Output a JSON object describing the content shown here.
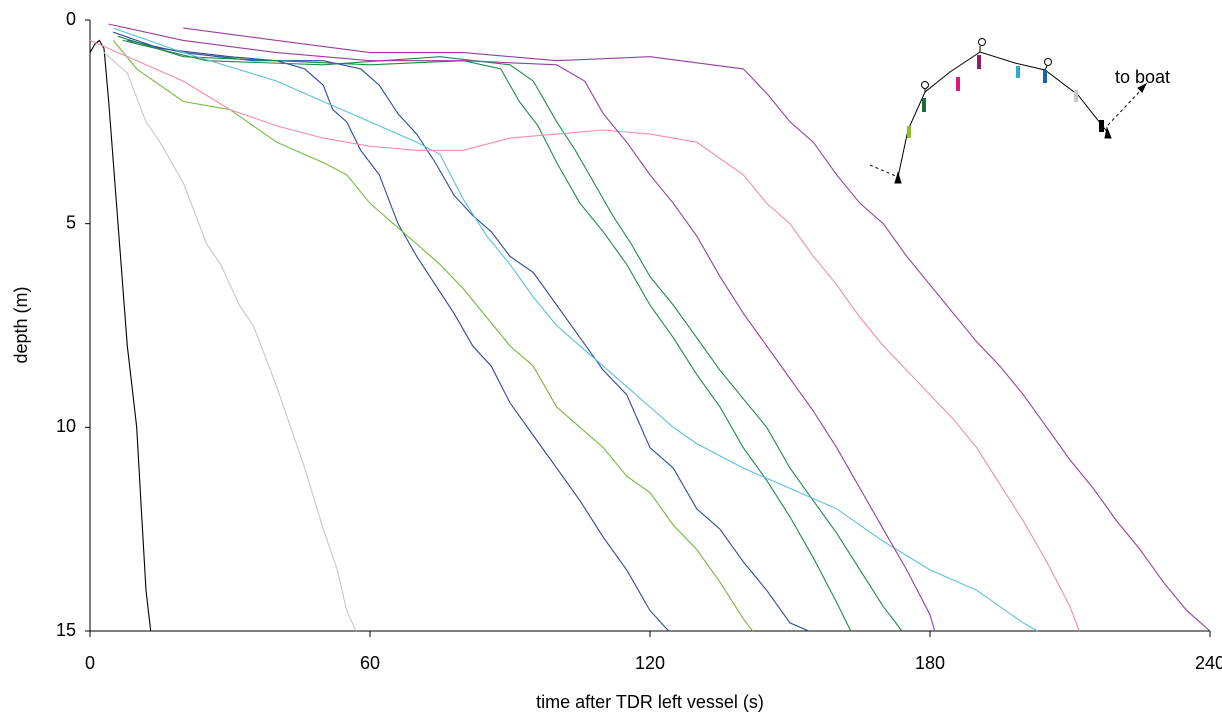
{
  "chart_data": {
    "type": "line",
    "x_label": "time after TDR left vessel (s)",
    "y_label": "depth (m)",
    "annotation": "to boat",
    "xlim": [
      0,
      240
    ],
    "xticks": [
      0,
      60,
      120,
      180,
      240
    ],
    "ylim": [
      0,
      15
    ],
    "yticks": [
      0,
      5,
      10,
      15
    ],
    "y_inverted": true,
    "grid": false,
    "series": [
      {
        "color": "#000000",
        "x": [
          0,
          1,
          2,
          3,
          4,
          6,
          8,
          10,
          11,
          12,
          13
        ],
        "values": [
          0.8,
          0.6,
          0.5,
          0.7,
          2,
          5,
          8,
          10,
          12,
          14,
          15
        ]
      },
      {
        "color": "#c8c8c8",
        "x": [
          3,
          8,
          12,
          15,
          20,
          25,
          28,
          32,
          35,
          40,
          43,
          46,
          50,
          53,
          55,
          57
        ],
        "values": [
          0.8,
          1.3,
          2.5,
          3,
          4,
          5.5,
          6,
          7,
          7.5,
          9,
          10,
          11,
          12.5,
          13.5,
          14.5,
          15
        ]
      },
      {
        "color": "#2b4a9b",
        "x": [
          5,
          15,
          30,
          40,
          46,
          50,
          52,
          55,
          58,
          62,
          66,
          70,
          74,
          78,
          82,
          86,
          90,
          95,
          100,
          105,
          110,
          115,
          120,
          124
        ],
        "values": [
          0.3,
          0.7,
          0.9,
          1,
          1.2,
          1.6,
          2.2,
          2.5,
          3.2,
          3.8,
          5,
          5.8,
          6.5,
          7.2,
          8,
          8.5,
          9.4,
          10.2,
          11,
          11.8,
          12.7,
          13.5,
          14.5,
          15
        ]
      },
      {
        "color": "#2b4a9b",
        "x": [
          8,
          20,
          35,
          50,
          58,
          62,
          66,
          70,
          74,
          78,
          82,
          86,
          90,
          95,
          100,
          105,
          110,
          115,
          120,
          125,
          130,
          135,
          140,
          145,
          150,
          154
        ],
        "values": [
          0.5,
          0.8,
          1,
          1,
          1.2,
          1.6,
          2.3,
          2.8,
          3.5,
          4.3,
          4.8,
          5.2,
          5.8,
          6.2,
          7,
          7.8,
          8.6,
          9.2,
          10.5,
          11,
          12,
          12.5,
          13.3,
          14,
          14.8,
          15
        ]
      },
      {
        "color": "#76b83a",
        "x": [
          5,
          10,
          20,
          30,
          35,
          40,
          50,
          55,
          60,
          65,
          70,
          75,
          80,
          85,
          90,
          95,
          100,
          105,
          110,
          115,
          120,
          125,
          130,
          135,
          140,
          142
        ],
        "values": [
          0.5,
          1.2,
          2,
          2.2,
          2.6,
          3,
          3.5,
          3.8,
          4.5,
          5,
          5.5,
          6,
          6.6,
          7.3,
          8,
          8.5,
          9.5,
          10,
          10.5,
          11.2,
          11.6,
          12.4,
          13,
          13.8,
          14.7,
          15
        ]
      },
      {
        "color": "#1e8a4a",
        "x": [
          6,
          20,
          40,
          60,
          80,
          88,
          92,
          96,
          100,
          105,
          110,
          115,
          120,
          125,
          130,
          135,
          140,
          145,
          150,
          155,
          160,
          163
        ],
        "values": [
          0.4,
          0.9,
          1,
          1.1,
          1,
          1.2,
          2,
          2.6,
          3.5,
          4.5,
          5.2,
          6,
          7,
          7.8,
          8.7,
          9.5,
          10.5,
          11.3,
          12.2,
          13.2,
          14.3,
          15
        ]
      },
      {
        "color": "#1e8a4a",
        "x": [
          7,
          25,
          50,
          75,
          90,
          95,
          100,
          104,
          108,
          112,
          116,
          120,
          125,
          130,
          135,
          140,
          145,
          150,
          155,
          160,
          165,
          170,
          174
        ],
        "values": [
          0.5,
          1,
          1.1,
          0.9,
          1.1,
          1.5,
          2.5,
          3.2,
          4,
          4.8,
          5.5,
          6.3,
          7,
          7.8,
          8.6,
          9.3,
          10,
          11,
          11.8,
          12.6,
          13.5,
          14.4,
          15
        ]
      },
      {
        "color": "#5bc0de",
        "x": [
          5,
          20,
          40,
          50,
          60,
          70,
          75,
          80,
          85,
          90,
          95,
          100,
          105,
          110,
          115,
          120,
          125,
          130,
          140,
          150,
          160,
          170,
          180,
          190,
          200,
          203
        ],
        "values": [
          0.2,
          0.8,
          1.5,
          2,
          2.5,
          3,
          3.3,
          4.4,
          5.3,
          6,
          6.8,
          7.5,
          8,
          8.5,
          9,
          9.5,
          10,
          10.4,
          11,
          11.5,
          12,
          12.8,
          13.5,
          14,
          14.8,
          15
        ]
      },
      {
        "color": "#f08cb0",
        "x": [
          0,
          10,
          20,
          30,
          40,
          50,
          60,
          70,
          80,
          90,
          100,
          110,
          120,
          130,
          140,
          145,
          150,
          155,
          160,
          165,
          170,
          175,
          180,
          185,
          190,
          195,
          200,
          205,
          210,
          212
        ],
        "values": [
          0.5,
          1,
          1.5,
          2.2,
          2.6,
          2.9,
          3.1,
          3.2,
          3.2,
          2.9,
          2.8,
          2.7,
          2.8,
          3,
          3.8,
          4.5,
          5,
          5.8,
          6.5,
          7.3,
          8,
          8.6,
          9.2,
          9.8,
          10.5,
          11.4,
          12.3,
          13.3,
          14.4,
          15
        ]
      },
      {
        "color": "#9b3d9b",
        "x": [
          4,
          20,
          40,
          60,
          80,
          100,
          106,
          110,
          115,
          120,
          125,
          130,
          135,
          140,
          145,
          150,
          155,
          160,
          165,
          170,
          175,
          180,
          181
        ],
        "values": [
          0.1,
          0.5,
          0.8,
          1,
          1,
          1.1,
          1.5,
          2.3,
          3,
          3.8,
          4.5,
          5.3,
          6.3,
          7.2,
          8,
          8.8,
          9.6,
          10.5,
          11.5,
          12.5,
          13.5,
          14.6,
          15
        ]
      },
      {
        "color": "#9b3d9b",
        "x": [
          20,
          40,
          60,
          80,
          100,
          120,
          140,
          145,
          150,
          155,
          160,
          165,
          170,
          175,
          180,
          185,
          190,
          195,
          200,
          205,
          210,
          215,
          220,
          225,
          230,
          235,
          240
        ],
        "values": [
          0.2,
          0.5,
          0.8,
          0.8,
          1,
          0.9,
          1.2,
          1.8,
          2.5,
          3,
          3.8,
          4.5,
          5,
          5.8,
          6.5,
          7.2,
          7.9,
          8.5,
          9.2,
          10,
          10.8,
          11.5,
          12.3,
          13,
          13.8,
          14.5,
          15
        ]
      }
    ]
  }
}
